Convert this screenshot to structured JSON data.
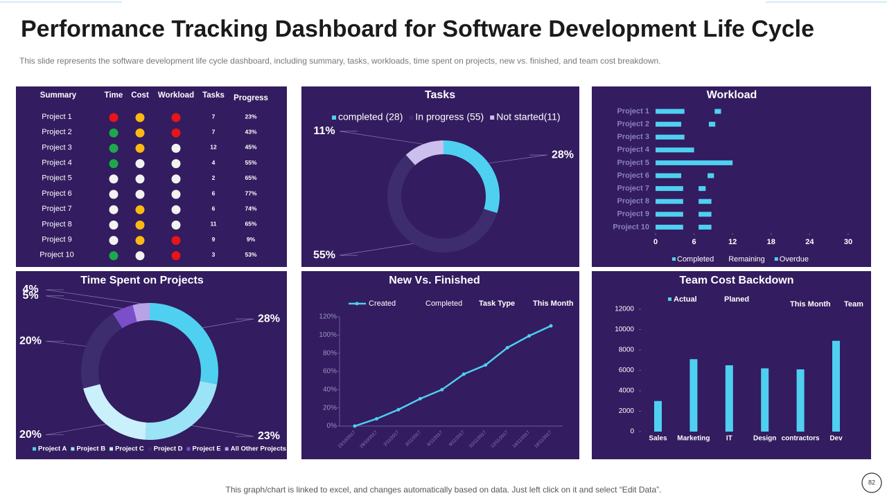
{
  "header": {
    "title": "Performance Tracking Dashboard for Software Development Life Cycle",
    "subtitle": "This slide represents the software development  life cycle dashboard, including summary, tasks, workloads, time spent on projects, new vs. finished, and team cost breakdown."
  },
  "summary": {
    "columns": [
      "Summary",
      "Time",
      "Cost",
      "Workload",
      "Tasks",
      "Progress"
    ],
    "rows": [
      {
        "project": "Project 1",
        "time": "#e8141b",
        "cost": "#fbb913",
        "workload": "#e8141b",
        "tasks": 7,
        "progress": "23%"
      },
      {
        "project": "Project 2",
        "time": "#1ea84c",
        "cost": "#fbb913",
        "workload": "#e8141b",
        "tasks": 7,
        "progress": "43%"
      },
      {
        "project": "Project 3",
        "time": "#1ea84c",
        "cost": "#fbb913",
        "workload": "#f2f2f2",
        "tasks": 12,
        "progress": "45%"
      },
      {
        "project": "Project 4",
        "time": "#1ea84c",
        "cost": "#f2f2f2",
        "workload": "#f2f2f2",
        "tasks": 4,
        "progress": "55%"
      },
      {
        "project": "Project 5",
        "time": "#f2f2f2",
        "cost": "#f2f2f2",
        "workload": "#f2f2f2",
        "tasks": 2,
        "progress": "65%"
      },
      {
        "project": "Project 6",
        "time": "#f2f2f2",
        "cost": "#f2f2f2",
        "workload": "#f2f2f2",
        "tasks": 6,
        "progress": "77%"
      },
      {
        "project": "Project 7",
        "time": "#f2f2f2",
        "cost": "#fbb913",
        "workload": "#f2f2f2",
        "tasks": 6,
        "progress": "74%"
      },
      {
        "project": "Project 8",
        "time": "#f2f2f2",
        "cost": "#fbb913",
        "workload": "#f2f2f2",
        "tasks": 11,
        "progress": "65%"
      },
      {
        "project": "Project 9",
        "time": "#f2f2f2",
        "cost": "#fbb913",
        "workload": "#e8141b",
        "tasks": 9,
        "progress": "9%"
      },
      {
        "project": "Project 10",
        "time": "#1ea84c",
        "cost": "#f2f2f2",
        "workload": "#e8141b",
        "tasks": 3,
        "progress": "53%"
      }
    ]
  },
  "chart_data": [
    {
      "type": "donut",
      "title": "Tasks",
      "categories": [
        "completed (28)",
        "In progress (55)",
        "Not started(11)"
      ],
      "values": [
        28,
        55,
        11
      ],
      "value_labels": [
        "28%",
        "55%",
        "11%"
      ],
      "colors": [
        "#4fd0f0",
        "#3d2d6e",
        "#cbbfee"
      ]
    },
    {
      "type": "hbar_stacked",
      "title": "Workload",
      "categories": [
        "Project 1",
        "Project 2",
        "Project 3",
        "Project 4",
        "Project 5",
        "Project 6",
        "Project 7",
        "Project 8",
        "Project 9",
        "Project 10"
      ],
      "series": [
        {
          "name": "Completed",
          "color": "#4fd0f0",
          "values": [
            4.5,
            4,
            4.5,
            6,
            12,
            4,
            4.3,
            4.3,
            4.3,
            4.3
          ]
        },
        {
          "name": "Remaining",
          "color": "transparent",
          "values": [
            4.7,
            4.3,
            0,
            0,
            0,
            4.1,
            2.4,
            2.4,
            2.4,
            2.4
          ]
        },
        {
          "name": "Overdue",
          "color": "#4fd0f0",
          "values": [
            1,
            1,
            0,
            0,
            0,
            1,
            1.1,
            2,
            2,
            2
          ]
        }
      ],
      "xlim": [
        0,
        30
      ],
      "xticks": [
        0,
        6,
        12,
        18,
        24,
        30
      ]
    },
    {
      "type": "donut",
      "title": "Time Spent on Projects",
      "categories": [
        "Project A",
        "Project B",
        "Project C",
        "Project D",
        "Project E",
        "All Other Projects"
      ],
      "values": [
        28,
        23,
        20,
        20,
        5,
        4
      ],
      "value_labels": [
        "28%",
        "23%",
        "20%",
        "20%",
        "5%",
        "4%"
      ],
      "colors": [
        "#4fd0f0",
        "#9be3f6",
        "#c9f0fb",
        "#3d2d6e",
        "#7a4fc9",
        "#b9a3e8"
      ]
    },
    {
      "type": "line",
      "title": "New Vs. Finished",
      "categories": [
        "23/10/2017",
        "28/10/2017",
        "2/11/2017",
        "3/11/2017",
        "6/11/2017",
        "9/11/2017",
        "10/11/2017",
        "12/11/2017",
        "14/11/2017",
        "16/11/2017"
      ],
      "series": [
        {
          "name": "Created",
          "color": "#4fd0f0",
          "values": [
            0,
            8,
            18,
            30,
            40,
            57,
            67,
            86,
            99,
            110
          ]
        }
      ],
      "legend_extra": [
        "Completed",
        "Task Type",
        "This Month"
      ],
      "ylim": [
        0,
        120
      ],
      "yticks": [
        {
          "value": 0,
          "label": "0%"
        },
        {
          "value": 20,
          "label": "20%"
        },
        {
          "value": 40,
          "label": "40%"
        },
        {
          "value": 60,
          "label": "60%"
        },
        {
          "value": 80,
          "label": "80%"
        },
        {
          "value": 100,
          "label": "100%"
        },
        {
          "value": 120,
          "label": "120%"
        }
      ]
    },
    {
      "type": "bar",
      "title": "Team Cost Backdown",
      "categories": [
        "Sales",
        "Marketing",
        "IT",
        "Design",
        "contractors",
        "Dev"
      ],
      "series": [
        {
          "name": "Actual",
          "color": "#4fd0f0",
          "values": [
            3000,
            7100,
            6500,
            6200,
            6100,
            8900
          ]
        }
      ],
      "legend_extra": [
        "Planed",
        "This Month",
        "Team"
      ],
      "ylim": [
        0,
        12000
      ],
      "yticks": [
        0,
        2000,
        4000,
        6000,
        8000,
        10000,
        12000
      ]
    }
  ],
  "footer": {
    "note": "This graph/chart is linked to excel, and changes automatically based on data. Just left click on it and select “Edit Data”.",
    "page": "82"
  }
}
